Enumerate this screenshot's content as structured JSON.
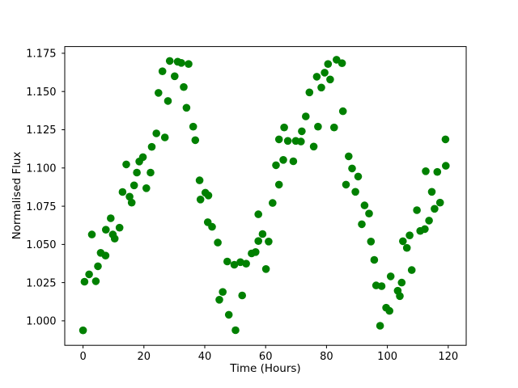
{
  "figure": {
    "background": "#ffffff",
    "frame_color": "#000000",
    "text_color": "#000000"
  },
  "chart_data": {
    "type": "scatter",
    "title": "",
    "xlabel": "Time (Hours)",
    "ylabel": "Normalised Flux",
    "marker_color": "#008000",
    "marker_shape": "circle",
    "grid": false,
    "legend": null,
    "xlim": [
      -6.0,
      125.9
    ],
    "ylim": [
      0.984,
      1.1794
    ],
    "x_ticks": [
      0,
      20,
      40,
      60,
      80,
      100,
      120
    ],
    "y_ticks": [
      1.0,
      1.025,
      1.05,
      1.075,
      1.1,
      1.125,
      1.15,
      1.175
    ],
    "y_tick_labels": [
      "1.000",
      "1.025",
      "1.050",
      "1.075",
      "1.100",
      "1.125",
      "1.150",
      "1.175"
    ],
    "points": [
      [
        0.0,
        0.9938
      ],
      [
        0.5,
        1.0256
      ],
      [
        2.0,
        1.0304
      ],
      [
        2.9,
        1.0565
      ],
      [
        4.2,
        1.0259
      ],
      [
        4.9,
        1.0357
      ],
      [
        5.8,
        1.0445
      ],
      [
        7.4,
        1.0427
      ],
      [
        7.5,
        1.0596
      ],
      [
        9.1,
        1.0671
      ],
      [
        9.8,
        1.0565
      ],
      [
        10.4,
        1.0538
      ],
      [
        12.0,
        1.0609
      ],
      [
        13.0,
        1.0843
      ],
      [
        14.2,
        1.1023
      ],
      [
        15.3,
        1.0812
      ],
      [
        16.0,
        1.0773
      ],
      [
        16.8,
        1.0886
      ],
      [
        17.7,
        1.097
      ],
      [
        18.5,
        1.1042
      ],
      [
        19.7,
        1.1071
      ],
      [
        20.8,
        1.0868
      ],
      [
        22.2,
        1.097
      ],
      [
        22.6,
        1.1138
      ],
      [
        24.1,
        1.1226
      ],
      [
        24.8,
        1.1491
      ],
      [
        26.1,
        1.1632
      ],
      [
        26.9,
        1.12
      ],
      [
        27.9,
        1.1438
      ],
      [
        28.5,
        1.17
      ],
      [
        30.1,
        1.16
      ],
      [
        31.1,
        1.1695
      ],
      [
        32.3,
        1.1687
      ],
      [
        33.1,
        1.1529
      ],
      [
        34.0,
        1.1394
      ],
      [
        34.7,
        1.168
      ],
      [
        36.2,
        1.127
      ],
      [
        36.9,
        1.1182
      ],
      [
        38.3,
        1.0919
      ],
      [
        38.6,
        1.0794
      ],
      [
        40.2,
        1.0838
      ],
      [
        41.0,
        1.0645
      ],
      [
        41.2,
        1.082
      ],
      [
        42.4,
        1.0615
      ],
      [
        44.3,
        1.0512
      ],
      [
        44.8,
        1.0138
      ],
      [
        45.9,
        1.0189
      ],
      [
        47.4,
        1.0388
      ],
      [
        47.9,
        1.004
      ],
      [
        49.7,
        1.0367
      ],
      [
        50.1,
        0.9939
      ],
      [
        51.7,
        1.0384
      ],
      [
        52.3,
        1.0166
      ],
      [
        53.6,
        1.0374
      ],
      [
        55.4,
        1.0441
      ],
      [
        56.7,
        1.045
      ],
      [
        57.6,
        1.0522
      ],
      [
        57.6,
        1.0697
      ],
      [
        59.0,
        1.0568
      ],
      [
        60.1,
        1.0339
      ],
      [
        61.0,
        1.0519
      ],
      [
        62.3,
        1.0771
      ],
      [
        63.4,
        1.1018
      ],
      [
        64.4,
        1.0891
      ],
      [
        64.4,
        1.1187
      ],
      [
        65.8,
        1.1053
      ],
      [
        66.1,
        1.1265
      ],
      [
        67.3,
        1.1177
      ],
      [
        69.1,
        1.1044
      ],
      [
        69.9,
        1.1177
      ],
      [
        71.6,
        1.1173
      ],
      [
        71.9,
        1.124
      ],
      [
        73.2,
        1.1337
      ],
      [
        74.4,
        1.1494
      ],
      [
        75.8,
        1.114
      ],
      [
        76.8,
        1.1597
      ],
      [
        77.2,
        1.127
      ],
      [
        78.3,
        1.1526
      ],
      [
        79.4,
        1.1623
      ],
      [
        80.5,
        1.168
      ],
      [
        81.2,
        1.1579
      ],
      [
        82.5,
        1.1265
      ],
      [
        83.3,
        1.1708
      ],
      [
        85.1,
        1.1685
      ],
      [
        85.4,
        1.1371
      ],
      [
        86.4,
        1.0891
      ],
      [
        87.3,
        1.1076
      ],
      [
        88.4,
        1.0997
      ],
      [
        89.5,
        1.0844
      ],
      [
        90.4,
        1.0944
      ],
      [
        91.6,
        1.0632
      ],
      [
        92.5,
        1.0755
      ],
      [
        94.0,
        1.0702
      ],
      [
        94.6,
        1.0519
      ],
      [
        95.7,
        1.0399
      ],
      [
        96.3,
        1.0232
      ],
      [
        97.6,
        0.9968
      ],
      [
        98.1,
        1.0227
      ],
      [
        99.6,
        1.0086
      ],
      [
        100.7,
        1.0065
      ],
      [
        101.1,
        1.0291
      ],
      [
        103.4,
        1.0197
      ],
      [
        104.1,
        1.0162
      ],
      [
        104.7,
        1.025
      ],
      [
        105.1,
        1.0521
      ],
      [
        106.4,
        1.0477
      ],
      [
        107.3,
        1.0559
      ],
      [
        108.0,
        1.0332
      ],
      [
        109.7,
        1.0724
      ],
      [
        110.8,
        1.0588
      ],
      [
        112.3,
        1.06
      ],
      [
        112.6,
        1.0979
      ],
      [
        113.7,
        1.0656
      ],
      [
        114.6,
        1.0844
      ],
      [
        115.5,
        1.0733
      ],
      [
        116.4,
        1.0974
      ],
      [
        117.3,
        1.0773
      ],
      [
        119.1,
        1.1187
      ],
      [
        119.2,
        1.1014
      ]
    ]
  }
}
